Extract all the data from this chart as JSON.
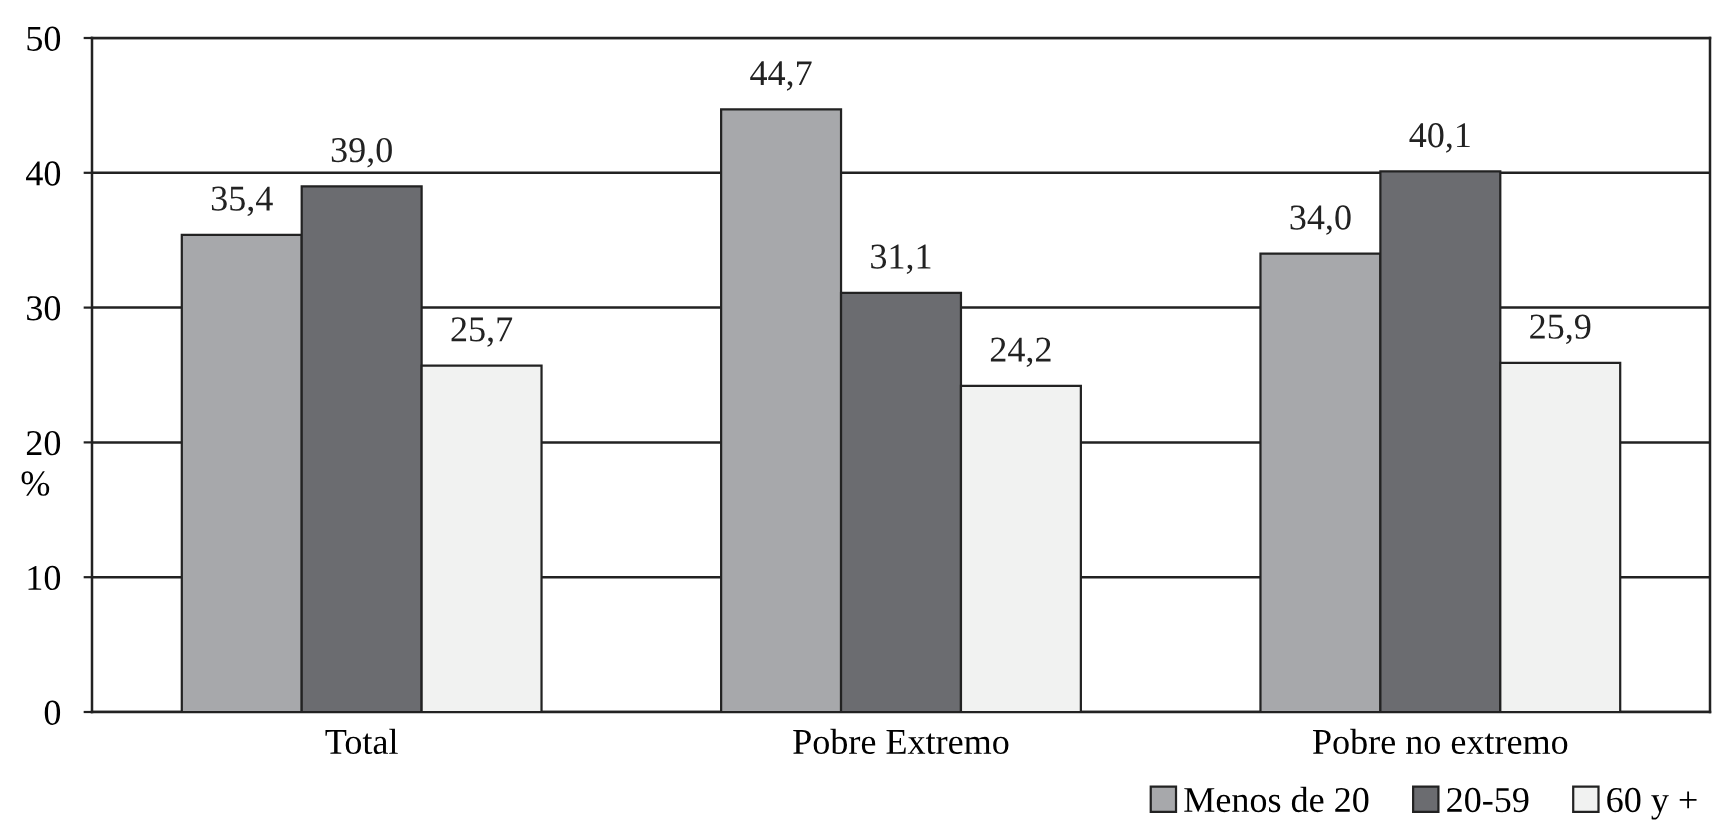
{
  "chart_data": {
    "type": "bar",
    "ylabel": "%",
    "categories": [
      "Total",
      "Pobre Extremo",
      "Pobre no extremo"
    ],
    "series": [
      {
        "name": "Menos de 20",
        "color": "#a7a8ab",
        "values": [
          35.4,
          44.7,
          34.0
        ],
        "value_labels": [
          "35,4",
          "44,7",
          "34,0"
        ]
      },
      {
        "name": "20-59",
        "color": "#6b6c70",
        "values": [
          39.0,
          31.1,
          40.1
        ],
        "value_labels": [
          "39,0",
          "31,1",
          "40,1"
        ]
      },
      {
        "name": "60 y +",
        "color": "#f1f2f1",
        "values": [
          25.7,
          24.2,
          25.9
        ],
        "value_labels": [
          "25,7",
          "24,2",
          "25,9"
        ]
      }
    ],
    "ylim": [
      0,
      50
    ],
    "yticks": [
      0,
      10,
      20,
      30,
      40,
      50
    ],
    "grid": "y",
    "legend": "bottom right"
  }
}
